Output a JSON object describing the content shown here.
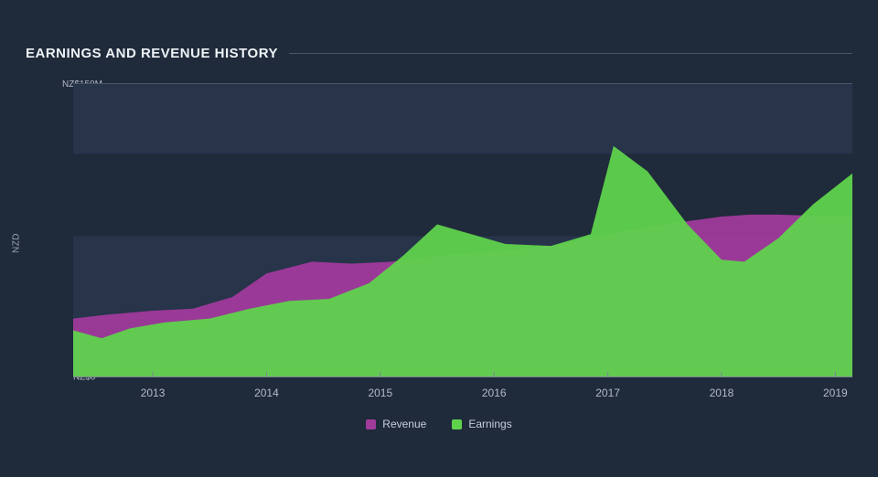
{
  "title": "EARNINGS AND REVENUE HISTORY",
  "y_axis_label": "NZD",
  "y_top_label": "NZ$150M",
  "y_bot_label": "NZ$0",
  "chart": {
    "type": "area",
    "background_color": "#1f2a3a",
    "band_color": "#27344a",
    "grid_color": "#4a5566",
    "axis_color": "#7c8492",
    "text_color": "#b2bbc9",
    "ylim": [
      0,
      150
    ],
    "band_edges": [
      30,
      72,
      114,
      150
    ],
    "x_start": 2012.3,
    "x_end": 2019.15,
    "x_ticks": [
      2013,
      2014,
      2015,
      2016,
      2017,
      2018,
      2019
    ],
    "series": [
      {
        "name": "Revenue",
        "color": "#a03a9b",
        "points": [
          [
            2012.3,
            30
          ],
          [
            2012.6,
            32
          ],
          [
            2013.0,
            34
          ],
          [
            2013.35,
            35
          ],
          [
            2013.7,
            41
          ],
          [
            2014.0,
            53
          ],
          [
            2014.4,
            59
          ],
          [
            2014.75,
            58
          ],
          [
            2015.1,
            59
          ],
          [
            2015.5,
            62
          ],
          [
            2016.0,
            64
          ],
          [
            2016.5,
            67
          ],
          [
            2017.0,
            73
          ],
          [
            2017.5,
            78
          ],
          [
            2018.0,
            82
          ],
          [
            2018.25,
            83
          ],
          [
            2018.5,
            83
          ],
          [
            2019.0,
            82
          ],
          [
            2019.15,
            82
          ]
        ]
      },
      {
        "name": "Earnings",
        "color": "#5fd24c",
        "points": [
          [
            2012.3,
            24
          ],
          [
            2012.55,
            20
          ],
          [
            2012.8,
            25
          ],
          [
            2013.1,
            28
          ],
          [
            2013.5,
            30
          ],
          [
            2013.85,
            35
          ],
          [
            2014.2,
            39
          ],
          [
            2014.55,
            40
          ],
          [
            2014.9,
            48
          ],
          [
            2015.2,
            62
          ],
          [
            2015.5,
            78
          ],
          [
            2015.8,
            73
          ],
          [
            2016.1,
            68
          ],
          [
            2016.5,
            67
          ],
          [
            2016.85,
            73
          ],
          [
            2017.05,
            118
          ],
          [
            2017.35,
            105
          ],
          [
            2017.7,
            78
          ],
          [
            2018.0,
            60
          ],
          [
            2018.2,
            59
          ],
          [
            2018.5,
            71
          ],
          [
            2018.8,
            88
          ],
          [
            2019.15,
            104
          ]
        ]
      }
    ]
  },
  "legend": [
    {
      "label": "Revenue",
      "color": "#a03a9b"
    },
    {
      "label": "Earnings",
      "color": "#5fd24c"
    }
  ]
}
